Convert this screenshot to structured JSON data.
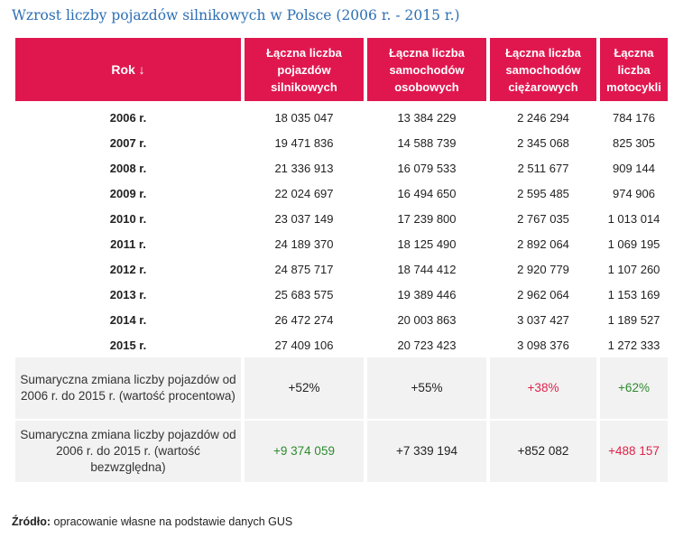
{
  "title": "Wzrost liczby pojazdów silnikowych w Polsce (2006 r. - 2015 r.)",
  "chart_data": {
    "type": "table",
    "columns": [
      "Rok ↓",
      "Łączna liczba pojazdów silnikowych",
      "Łączna liczba samochodów osobowych",
      "Łączna liczba samochodów ciężarowych",
      "Łączna liczba motocykli"
    ],
    "rows": [
      [
        "2006 r.",
        "18 035 047",
        "13 384 229",
        "2 246 294",
        "784 176"
      ],
      [
        "2007 r.",
        "19 471 836",
        "14 588 739",
        "2 345 068",
        "825 305"
      ],
      [
        "2008 r.",
        "21 336 913",
        "16 079 533",
        "2 511 677",
        "909 144"
      ],
      [
        "2009 r.",
        "22 024 697",
        "16 494 650",
        "2 595 485",
        "974 906"
      ],
      [
        "2010 r.",
        "23 037 149",
        "17 239 800",
        "2 767 035",
        "1 013 014"
      ],
      [
        "2011 r.",
        "24 189 370",
        "18 125 490",
        "2 892 064",
        "1 069 195"
      ],
      [
        "2012 r.",
        "24 875 717",
        "18 744 412",
        "2 920 779",
        "1 107 260"
      ],
      [
        "2013 r.",
        "25 683 575",
        "19 389 446",
        "2 962 064",
        "1 153 169"
      ],
      [
        "2014 r.",
        "26 472 274",
        "20 003 863",
        "3 037 427",
        "1 189 527"
      ],
      [
        "2015 r.",
        "27 409 106",
        "20 723 423",
        "3 098 376",
        "1 272 333"
      ]
    ],
    "summary_rows": [
      {
        "label": "Sumaryczna zmiana liczby pojazdów od 2006 r. do 2015 r. (wartość procentowa)",
        "values": [
          {
            "text": "+52%",
            "color": "#222222"
          },
          {
            "text": "+55%",
            "color": "#222222"
          },
          {
            "text": "+38%",
            "color": "#e0234b"
          },
          {
            "text": "+62%",
            "color": "#2e8b2e"
          }
        ]
      },
      {
        "label": "Sumaryczna zmiana liczby pojazdów od 2006 r. do 2015 r. (wartość bezwzględna)",
        "values": [
          {
            "text": "+9 374 059",
            "color": "#2e8b2e"
          },
          {
            "text": "+7 339 194",
            "color": "#222222"
          },
          {
            "text": "+852 082",
            "color": "#222222"
          },
          {
            "text": "+488 157",
            "color": "#e0234b"
          }
        ]
      }
    ]
  },
  "colors": {
    "title": "#2c6fb4",
    "header_bg": "#e0174f",
    "summary_bg": "#f2f2f2",
    "positive_highlight": "#2e8b2e",
    "negative_highlight": "#e0234b"
  },
  "source": {
    "label": "Źródło:",
    "text": " opracowanie własne na podstawie danych GUS"
  }
}
